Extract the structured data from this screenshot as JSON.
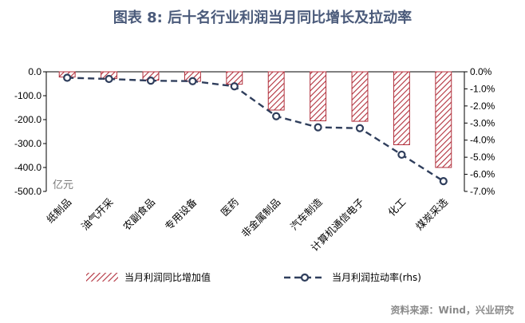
{
  "title": "图表 8:  后十名行业利润当月同比增长及拉动率",
  "source": "资料来源：Wind，兴业研究",
  "colors": {
    "title": "#4a5a7a",
    "bar_stroke": "#b2303c",
    "bar_hatch": "#b2303c",
    "line": "#2f3e5c",
    "axis": "#000000"
  },
  "chart_data": {
    "type": "bar",
    "categories": [
      "纸制品",
      "油气开采",
      "农副食品",
      "专用设备",
      "医药",
      "非金属制品",
      "汽车制造",
      "计算机通信电子",
      "化工",
      "煤炭采选"
    ],
    "series": [
      {
        "name": "当月利润同比增加值",
        "type": "bar",
        "axis": "left",
        "values": [
          -22,
          -28,
          -35,
          -40,
          -52,
          -160,
          -205,
          -207,
          -305,
          -400
        ]
      },
      {
        "name": "当月利润拉动率(rhs)",
        "type": "line",
        "axis": "right",
        "values": [
          -0.35,
          -0.42,
          -0.52,
          -0.55,
          -0.85,
          -2.6,
          -3.25,
          -3.3,
          -4.85,
          -6.4
        ]
      }
    ],
    "left_axis": {
      "ylim": [
        -500,
        0
      ],
      "ticks": [
        0,
        -100,
        -200,
        -300,
        -400,
        -500
      ],
      "tick_labels": [
        "0.0",
        "-100.0",
        "-200.0",
        "-300.0",
        "-400.0",
        "-500.0"
      ],
      "unit_label": "亿元"
    },
    "right_axis": {
      "ylim": [
        -7,
        0
      ],
      "ticks": [
        0,
        -1,
        -2,
        -3,
        -4,
        -5,
        -6,
        -7
      ],
      "tick_labels": [
        "0.0%",
        "-1.0%",
        "-2.0%",
        "-3.0%",
        "-4.0%",
        "-5.0%",
        "-6.0%",
        "-7.0%"
      ]
    },
    "grid": false,
    "legend_position": "bottom"
  }
}
